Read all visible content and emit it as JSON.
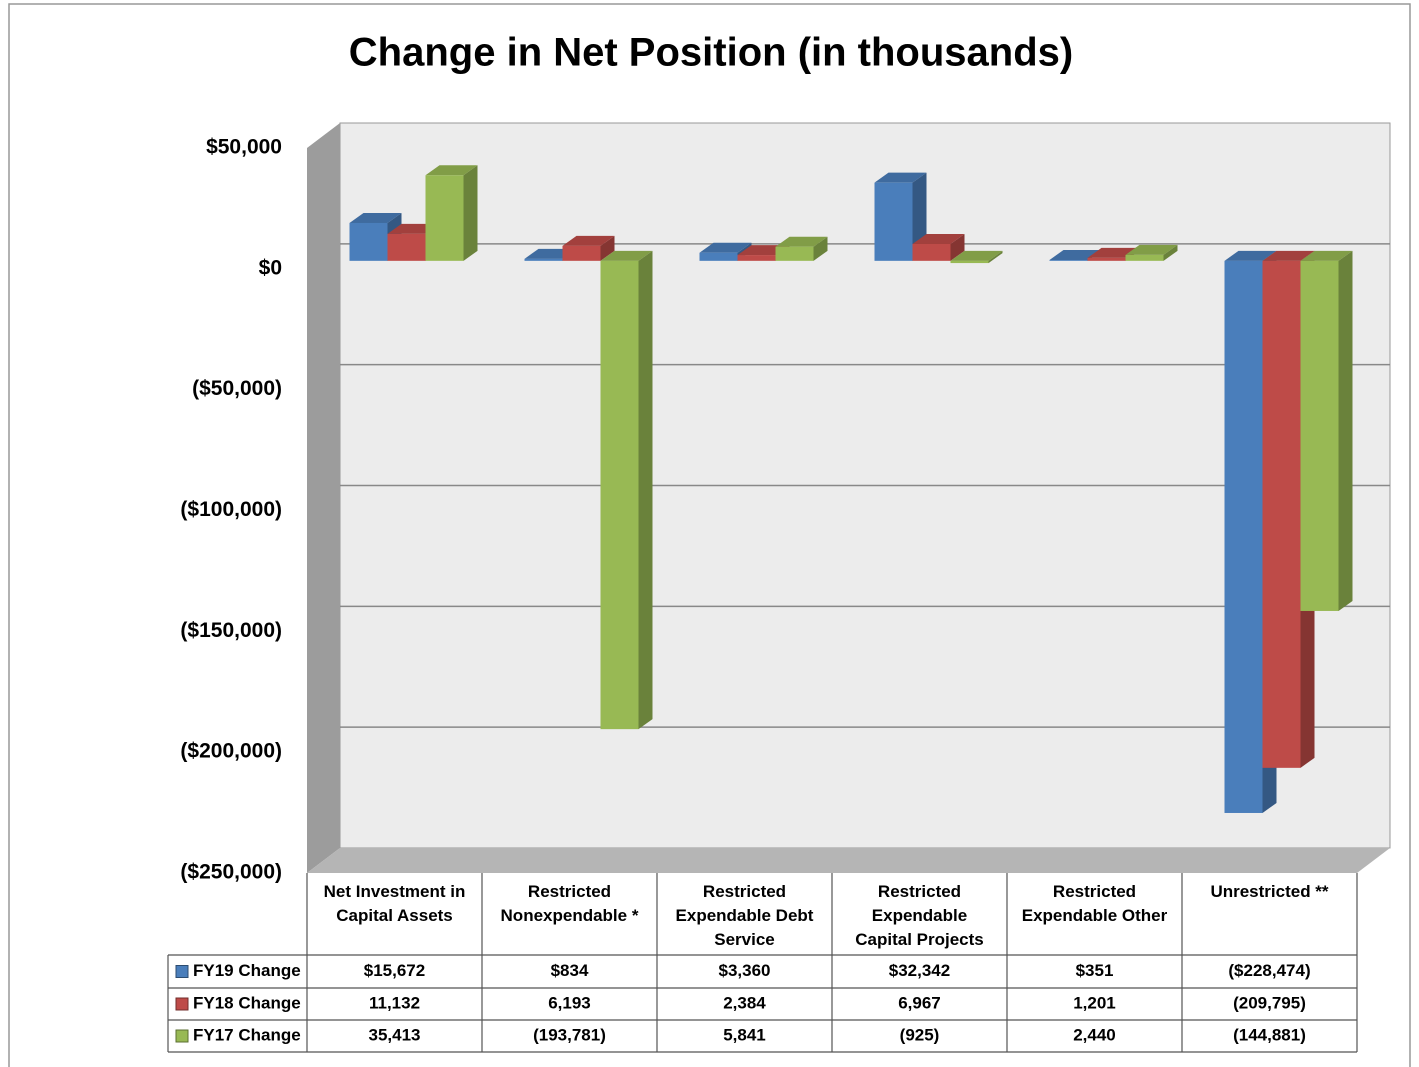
{
  "chart_data": {
    "type": "bar",
    "title": "Change in Net Position (in thousands)",
    "categories": [
      "Net Investment in Capital Assets",
      "Restricted Nonexpendable *",
      "Restricted Expendable Debt Service",
      "Restricted Expendable Capital Projects",
      "Restricted Expendable Other",
      "Unrestricted **"
    ],
    "series": [
      {
        "name": "FY19 Change",
        "color": "#4a7ebb",
        "values": [
          15672,
          834,
          3360,
          32342,
          351,
          -228474
        ],
        "value_labels": [
          "$15,672",
          "$834",
          "$3,360",
          "$32,342",
          "$351",
          "($228,474)"
        ]
      },
      {
        "name": "FY18 Change",
        "color": "#be4b48",
        "values": [
          11132,
          6193,
          2384,
          6967,
          1201,
          -209795
        ],
        "value_labels": [
          "11,132",
          "6,193",
          "2,384",
          "6,967",
          "1,201",
          "(209,795)"
        ]
      },
      {
        "name": "FY17 Change",
        "color": "#98b954",
        "values": [
          35413,
          -193781,
          5841,
          -925,
          2440,
          -144881
        ],
        "value_labels": [
          "35,413",
          "(193,781)",
          "5,841",
          "(925)",
          "2,440",
          "(144,881)"
        ]
      }
    ],
    "ylim": [
      -250000,
      50000
    ],
    "yticks": [
      {
        "value": 50000,
        "label": "$50,000"
      },
      {
        "value": 0,
        "label": "$0"
      },
      {
        "value": -50000,
        "label": "($50,000)"
      },
      {
        "value": -100000,
        "label": "($100,000)"
      },
      {
        "value": -150000,
        "label": "($150,000)"
      },
      {
        "value": -200000,
        "label": "($200,000)"
      },
      {
        "value": -250000,
        "label": "($250,000)"
      }
    ],
    "grid": true
  }
}
